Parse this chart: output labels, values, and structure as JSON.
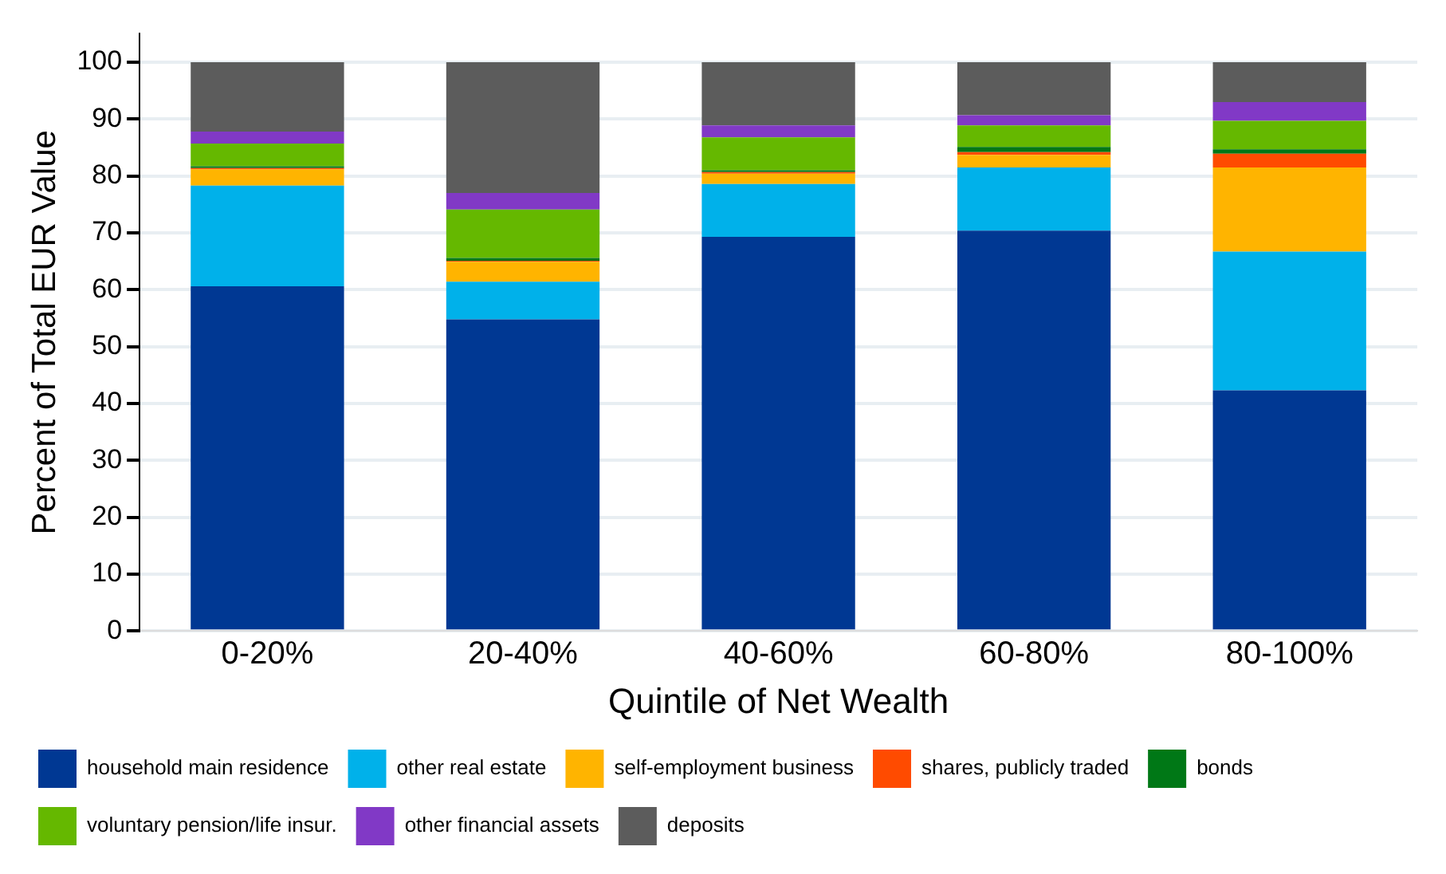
{
  "chart_data": {
    "type": "bar",
    "stacked": true,
    "xlabel": "Quintile of Net Wealth",
    "ylabel": "Percent of Total EUR Value",
    "categories": [
      "0-20%",
      "20-40%",
      "40-60%",
      "60-80%",
      "80-100%"
    ],
    "ylim": [
      0,
      105
    ],
    "yticks": [
      0,
      10,
      20,
      30,
      40,
      50,
      60,
      70,
      80,
      90,
      100
    ],
    "grid": "y",
    "legend": "bottom",
    "series": [
      {
        "name": "household main residence",
        "color": "#003893",
        "values": [
          60.6,
          54.8,
          69.3,
          70.4,
          42.3
        ]
      },
      {
        "name": "other real estate",
        "color": "#00b1ea",
        "values": [
          17.7,
          6.6,
          9.3,
          11.1,
          24.4
        ]
      },
      {
        "name": "self-employment business",
        "color": "#ffb400",
        "values": [
          2.9,
          3.5,
          1.8,
          2.2,
          14.8
        ]
      },
      {
        "name": "shares, publicly traded",
        "color": "#ff4b00",
        "values": [
          0.2,
          0.2,
          0.3,
          0.5,
          2.4
        ]
      },
      {
        "name": "bonds",
        "color": "#007816",
        "values": [
          0.3,
          0.5,
          0.3,
          0.9,
          0.8
        ]
      },
      {
        "name": "voluntary pension/life insur.",
        "color": "#65b800",
        "values": [
          4.0,
          8.5,
          5.8,
          3.8,
          5.0
        ]
      },
      {
        "name": "other financial assets",
        "color": "#8139c6",
        "values": [
          2.1,
          2.9,
          2.1,
          1.8,
          3.3
        ]
      },
      {
        "name": "deposits",
        "color": "#5c5c5c",
        "values": [
          12.2,
          23.0,
          11.1,
          9.3,
          7.0
        ]
      }
    ]
  }
}
